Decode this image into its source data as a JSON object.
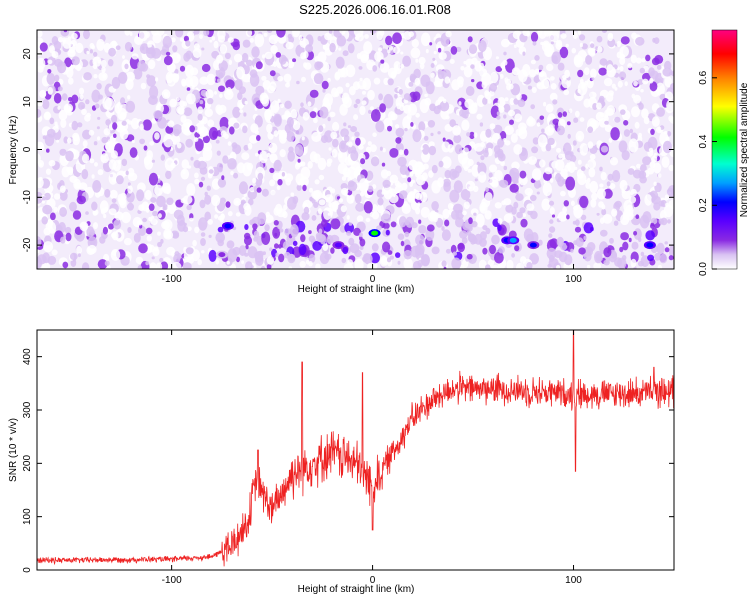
{
  "title": "S225.2026.006.16.01.R08",
  "colors": {
    "snr_line": "#ee2222",
    "axis": "#000000",
    "colormap": [
      "#ffffff",
      "#d9c2f2",
      "#8a2be2",
      "#5a00ff",
      "#0000ff",
      "#00a0ff",
      "#00ffd0",
      "#00ff00",
      "#ffff00",
      "#ff8000",
      "#ff0000",
      "#ff0080"
    ]
  },
  "chart_data": [
    {
      "type": "heatmap",
      "name": "spectrogram",
      "xlabel": "Height of straight line (km)",
      "ylabel": "Frequency (Hz)",
      "xlim": [
        -167,
        150
      ],
      "ylim": [
        -25,
        25
      ],
      "xticks": [
        -100,
        0,
        100
      ],
      "yticks": [
        -20,
        -10,
        0,
        10,
        20
      ],
      "xtick_labels": [
        "-100",
        "0",
        "100"
      ],
      "ytick_labels": [
        "-20",
        "-10",
        "0",
        "10",
        "20"
      ],
      "grid": false,
      "colorbar": {
        "label": "Normalized spectral amplitude",
        "range": [
          0.0,
          0.75
        ],
        "ticks": [
          0.0,
          0.2,
          0.4,
          0.6
        ],
        "tick_labels": [
          "0.0",
          "0.2",
          "0.4",
          "0.6"
        ]
      },
      "band": {
        "frequency": -19,
        "label": "strong band near -19 Hz from about -80 km upward",
        "peaks": [
          {
            "x": -72,
            "y": -16,
            "amp": 0.3
          },
          {
            "x": -75,
            "y": -22,
            "amp": 0.15
          },
          {
            "x": -17,
            "y": -20,
            "amp": 0.2
          },
          {
            "x": 1,
            "y": -17.5,
            "amp": 0.45
          },
          {
            "x": 67,
            "y": -19,
            "amp": 0.3
          },
          {
            "x": 70,
            "y": -19,
            "amp": 0.35
          },
          {
            "x": 80,
            "y": -20,
            "amp": 0.25
          },
          {
            "x": 138,
            "y": -20,
            "amp": 0.3
          }
        ]
      }
    },
    {
      "type": "line",
      "name": "snr",
      "xlabel": "Height of straight line (km)",
      "ylabel": "SNR (10 * v/v)",
      "xlim": [
        -167,
        150
      ],
      "ylim": [
        0,
        450
      ],
      "xticks": [
        -100,
        0,
        100
      ],
      "yticks": [
        0,
        100,
        200,
        300,
        400
      ],
      "xtick_labels": [
        "-100",
        "0",
        "100"
      ],
      "ytick_labels": [
        "0",
        "100",
        "200",
        "300",
        "400"
      ],
      "grid": false,
      "trend": {
        "x": [
          -167,
          -100,
          -80,
          -70,
          -62,
          -58,
          -50,
          -40,
          -30,
          -20,
          -10,
          0,
          10,
          20,
          30,
          40,
          60,
          80,
          100,
          120,
          150
        ],
        "y": [
          18,
          20,
          25,
          45,
          90,
          170,
          110,
          180,
          200,
          220,
          205,
          160,
          220,
          285,
          320,
          340,
          340,
          335,
          330,
          330,
          335
        ]
      },
      "noise": [
        {
          "from": -167,
          "to": -75,
          "amp": 7
        },
        {
          "from": -75,
          "to": -45,
          "amp": 45
        },
        {
          "from": -45,
          "to": 5,
          "amp": 55
        },
        {
          "from": 5,
          "to": 150,
          "amp": 35
        }
      ],
      "spikes": [
        {
          "x": -57,
          "y": 225
        },
        {
          "x": -35,
          "y": 390
        },
        {
          "x": -5,
          "y": 370
        },
        {
          "x": 0,
          "y": 75
        },
        {
          "x": 100,
          "y": 450
        },
        {
          "x": 101,
          "y": 185
        },
        {
          "x": 140,
          "y": 380
        }
      ]
    }
  ]
}
